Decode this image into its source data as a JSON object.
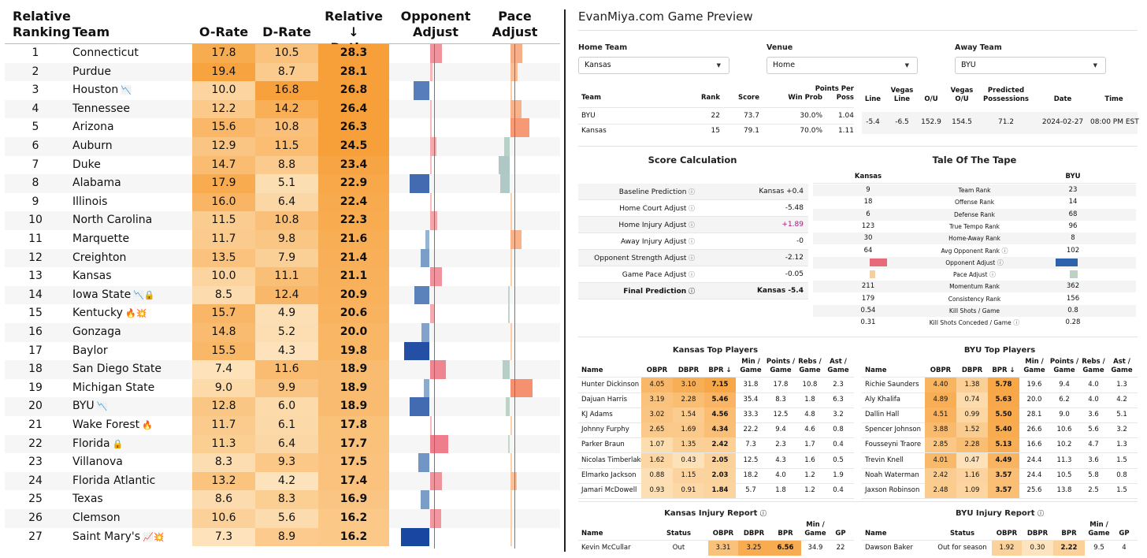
{
  "rankings": {
    "headers": {
      "rank_line1": "Relative",
      "rank_line2": "Ranking",
      "team": "Team",
      "orate": "O-Rate",
      "drate": "D-Rate",
      "rating_line1": "Relative ↓",
      "rating_line2": "Rating",
      "opp_line1": "Opponent",
      "opp_line2": "Adjust",
      "pace_line1": "Pace",
      "pace_line2": "Adjust"
    },
    "rows": [
      {
        "rank": "1",
        "team": "Connecticut",
        "icons": "",
        "orate": "17.8",
        "drate": "10.5",
        "rating": "28.3",
        "opp": 0.6,
        "pace": 0.6
      },
      {
        "rank": "2",
        "team": "Purdue",
        "icons": "",
        "orate": "19.4",
        "drate": "8.7",
        "rating": "28.1",
        "opp": 0.1,
        "pace": 0.35
      },
      {
        "rank": "3",
        "team": "Houston",
        "icons": "📉",
        "orate": "10.0",
        "drate": "16.8",
        "rating": "26.8",
        "opp": -0.8,
        "pace": 0.05
      },
      {
        "rank": "4",
        "team": "Tennessee",
        "icons": "",
        "orate": "12.2",
        "drate": "14.2",
        "rating": "26.4",
        "opp": 0.05,
        "pace": 0.55
      },
      {
        "rank": "5",
        "team": "Arizona",
        "icons": "",
        "orate": "15.6",
        "drate": "10.8",
        "rating": "26.3",
        "opp": 0.05,
        "pace": 0.95
      },
      {
        "rank": "6",
        "team": "Auburn",
        "icons": "",
        "orate": "12.9",
        "drate": "11.5",
        "rating": "24.5",
        "opp": 0.3,
        "pace": -0.3
      },
      {
        "rank": "7",
        "team": "Duke",
        "icons": "",
        "orate": "14.7",
        "drate": "8.8",
        "rating": "23.4",
        "opp": 0.0,
        "pace": -0.55
      },
      {
        "rank": "8",
        "team": "Alabama",
        "icons": "",
        "orate": "17.9",
        "drate": "5.1",
        "rating": "22.9",
        "opp": -1.0,
        "pace": -0.5
      },
      {
        "rank": "9",
        "team": "Illinois",
        "icons": "",
        "orate": "16.0",
        "drate": "6.4",
        "rating": "22.4",
        "opp": 0.0,
        "pace": 0.0
      },
      {
        "rank": "10",
        "team": "North Carolina",
        "icons": "",
        "orate": "11.5",
        "drate": "10.8",
        "rating": "22.3",
        "opp": 0.35,
        "pace": 0.05
      },
      {
        "rank": "11",
        "team": "Marquette",
        "icons": "",
        "orate": "11.7",
        "drate": "9.8",
        "rating": "21.6",
        "opp": -0.2,
        "pace": 0.55
      },
      {
        "rank": "12",
        "team": "Creighton",
        "icons": "",
        "orate": "13.5",
        "drate": "7.9",
        "rating": "21.4",
        "opp": -0.45,
        "pace": 0.0
      },
      {
        "rank": "13",
        "team": "Kansas",
        "icons": "",
        "orate": "10.0",
        "drate": "11.1",
        "rating": "21.1",
        "opp": 0.6,
        "pace": 0.0
      },
      {
        "rank": "14",
        "team": "Iowa State",
        "icons": "📉🔒",
        "orate": "8.5",
        "drate": "12.4",
        "rating": "20.9",
        "opp": -0.75,
        "pace": -0.1
      },
      {
        "rank": "15",
        "team": "Kentucky",
        "icons": "🔥💥",
        "orate": "15.7",
        "drate": "4.9",
        "rating": "20.6",
        "opp": 0.25,
        "pace": -0.1
      },
      {
        "rank": "16",
        "team": "Gonzaga",
        "icons": "",
        "orate": "14.8",
        "drate": "5.2",
        "rating": "20.0",
        "opp": -0.4,
        "pace": 0.05
      },
      {
        "rank": "17",
        "team": "Baylor",
        "icons": "",
        "orate": "15.5",
        "drate": "4.3",
        "rating": "19.8",
        "opp": -1.3,
        "pace": 0.0
      },
      {
        "rank": "18",
        "team": "San Diego State",
        "icons": "",
        "orate": "7.4",
        "drate": "11.6",
        "rating": "18.9",
        "opp": 0.8,
        "pace": -0.35
      },
      {
        "rank": "19",
        "team": "Michigan State",
        "icons": "",
        "orate": "9.0",
        "drate": "9.9",
        "rating": "18.9",
        "opp": -0.3,
        "pace": 1.1
      },
      {
        "rank": "20",
        "team": "BYU",
        "icons": "📉",
        "orate": "12.8",
        "drate": "6.0",
        "rating": "18.9",
        "opp": -1.0,
        "pace": -0.2
      },
      {
        "rank": "21",
        "team": "Wake Forest",
        "icons": "🔥",
        "orate": "11.7",
        "drate": "6.1",
        "rating": "17.8",
        "opp": 0.05,
        "pace": 0.0
      },
      {
        "rank": "22",
        "team": "Florida",
        "icons": "🔒",
        "orate": "11.3",
        "drate": "6.4",
        "rating": "17.7",
        "opp": 0.9,
        "pace": -0.05
      },
      {
        "rank": "23",
        "team": "Villanova",
        "icons": "",
        "orate": "8.3",
        "drate": "9.3",
        "rating": "17.5",
        "opp": -0.55,
        "pace": 0.0
      },
      {
        "rank": "24",
        "team": "Florida Atlantic",
        "icons": "",
        "orate": "13.2",
        "drate": "4.2",
        "rating": "17.4",
        "opp": 0.6,
        "pace": 0.3
      },
      {
        "rank": "25",
        "team": "Texas",
        "icons": "",
        "orate": "8.6",
        "drate": "8.3",
        "rating": "16.9",
        "opp": -0.45,
        "pace": 0.0
      },
      {
        "rank": "26",
        "team": "Clemson",
        "icons": "",
        "orate": "10.6",
        "drate": "5.6",
        "rating": "16.2",
        "opp": 0.55,
        "pace": 0.0
      },
      {
        "rank": "27",
        "team": "Saint Mary's",
        "icons": "📈💥",
        "orate": "7.3",
        "drate": "8.9",
        "rating": "16.2",
        "opp": -1.45,
        "pace": 0.0
      }
    ]
  },
  "preview": {
    "title": "EvanMiya.com Game Preview",
    "home_team_label": "Home Team",
    "home_team_value": "Kansas",
    "venue_label": "Venue",
    "venue_value": "Home",
    "away_team_label": "Away Team",
    "away_team_value": "BYU",
    "summary_headers": [
      "Team",
      "Rank",
      "Score",
      "Win Prob",
      "Points Per Poss"
    ],
    "summary_rows": [
      [
        "BYU",
        "22",
        "73.7",
        "30.0%",
        "1.04"
      ],
      [
        "Kansas",
        "15",
        "79.1",
        "70.0%",
        "1.11"
      ]
    ],
    "line_headers": [
      "Line",
      "Vegas Line",
      "O/U",
      "Vegas O/U",
      "Predicted Possessions",
      "Date",
      "Time"
    ],
    "line_values": [
      "-5.4",
      "-6.5",
      "152.9",
      "154.5",
      "71.2",
      "2024-02-27",
      "08:00 PM EST"
    ],
    "score_calc_title": "Score Calculation",
    "score_calc": [
      {
        "label": "Baseline Prediction",
        "value": "Kansas +0.4"
      },
      {
        "label": "Home Court Adjust",
        "value": "-5.48"
      },
      {
        "label": "Home Injury Adjust",
        "value": "+1.89"
      },
      {
        "label": "Away Injury Adjust",
        "value": "-0"
      },
      {
        "label": "Opponent Strength Adjust",
        "value": "-2.12"
      },
      {
        "label": "Game Pace Adjust",
        "value": "-0.05"
      },
      {
        "label": "Final Prediction",
        "value": "Kansas -5.4"
      }
    ],
    "tape_title": "Tale Of The Tape",
    "tape_left": "Kansas",
    "tape_right": "BYU",
    "tape": [
      {
        "left": "9",
        "label": "Team Rank",
        "right": "23"
      },
      {
        "left": "18",
        "label": "Offense Rank",
        "right": "14"
      },
      {
        "left": "6",
        "label": "Defense Rank",
        "right": "68"
      },
      {
        "left": "123",
        "label": "True Tempo Rank",
        "right": "96"
      },
      {
        "left": "30",
        "label": "Home-Away Rank",
        "right": "8"
      },
      {
        "left": "64",
        "label": "Avg Opponent Rank",
        "right": "102"
      },
      {
        "left": "",
        "label": "Opponent Adjust",
        "right": ""
      },
      {
        "left": "",
        "label": "Pace Adjust",
        "right": ""
      },
      {
        "left": "211",
        "label": "Momentum Rank",
        "right": "362"
      },
      {
        "left": "179",
        "label": "Consistency Rank",
        "right": "156"
      },
      {
        "left": "0.54",
        "label": "Kill Shots / Game",
        "right": "0.8"
      },
      {
        "left": "0.31",
        "label": "Kill Shots Conceded / Game",
        "right": "0.28"
      }
    ],
    "player_headers": [
      "Name",
      "OBPR",
      "DBPR",
      "BPR ↓",
      "Min / Game",
      "Points / Game",
      "Rebs / Game",
      "Ast / Game"
    ],
    "kansas_players_title": "Kansas Top Players",
    "kansas_players": [
      [
        "Hunter Dickinson",
        "4.05",
        "3.10",
        "7.15",
        "31.8",
        "17.8",
        "10.8",
        "2.3"
      ],
      [
        "Dajuan Harris",
        "3.19",
        "2.28",
        "5.46",
        "35.4",
        "8.3",
        "1.8",
        "6.3"
      ],
      [
        "KJ Adams",
        "3.02",
        "1.54",
        "4.56",
        "33.3",
        "12.5",
        "4.8",
        "3.2"
      ],
      [
        "Johnny Furphy",
        "2.65",
        "1.69",
        "4.34",
        "22.2",
        "9.4",
        "4.6",
        "0.8"
      ],
      [
        "Parker Braun",
        "1.07",
        "1.35",
        "2.42",
        "7.3",
        "2.3",
        "1.7",
        "0.4"
      ],
      [
        "Nicolas Timberlake",
        "1.62",
        "0.43",
        "2.05",
        "12.5",
        "4.3",
        "1.6",
        "0.5"
      ],
      [
        "Elmarko Jackson",
        "0.88",
        "1.15",
        "2.03",
        "18.2",
        "4.0",
        "1.2",
        "1.9"
      ],
      [
        "Jamari McDowell",
        "0.93",
        "0.91",
        "1.84",
        "5.7",
        "1.8",
        "1.2",
        "0.4"
      ]
    ],
    "byu_players_title": "BYU Top Players",
    "byu_players": [
      [
        "Richie Saunders",
        "4.40",
        "1.38",
        "5.78",
        "19.6",
        "9.4",
        "4.0",
        "1.3"
      ],
      [
        "Aly Khalifa",
        "4.89",
        "0.74",
        "5.63",
        "20.0",
        "6.2",
        "4.0",
        "4.2"
      ],
      [
        "Dallin Hall",
        "4.51",
        "0.99",
        "5.50",
        "28.1",
        "9.0",
        "3.6",
        "5.1"
      ],
      [
        "Spencer Johnson",
        "3.88",
        "1.52",
        "5.40",
        "26.6",
        "10.6",
        "5.6",
        "3.2"
      ],
      [
        "Fousseyni Traore",
        "2.85",
        "2.28",
        "5.13",
        "16.6",
        "10.2",
        "4.7",
        "1.3"
      ],
      [
        "Trevin Knell",
        "4.01",
        "0.47",
        "4.49",
        "24.4",
        "11.3",
        "3.6",
        "1.5"
      ],
      [
        "Noah Waterman",
        "2.42",
        "1.16",
        "3.57",
        "24.4",
        "10.5",
        "5.8",
        "0.8"
      ],
      [
        "Jaxson Robinson",
        "2.48",
        "1.09",
        "3.57",
        "25.6",
        "13.8",
        "2.5",
        "1.5"
      ]
    ],
    "kansas_injury_title": "Kansas Injury Report",
    "byu_injury_title": "BYU Injury Report",
    "injury_headers": [
      "Name",
      "Status",
      "OBPR",
      "DBPR",
      "BPR",
      "Min / Game",
      "GP"
    ],
    "kansas_injury": [
      "Kevin McCullar",
      "Out",
      "3.31",
      "3.25",
      "6.56",
      "34.9",
      "22"
    ],
    "byu_injury": [
      "Dawson Baker",
      "Out for season",
      "1.92",
      "0.30",
      "2.22",
      "9.5",
      "4"
    ],
    "colors": {
      "positive": "#e8697a",
      "negative": "#2f62ad",
      "orange_dark": "#f7a03a",
      "orange_light": "#fde3bf",
      "highlight_purple": "#a0197e"
    }
  }
}
